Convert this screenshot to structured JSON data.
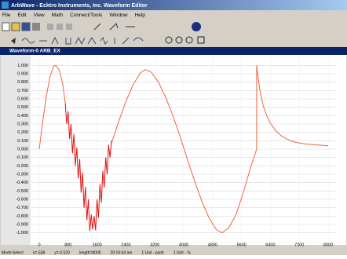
{
  "window_title": "ArbWave - Ecktro Instruments, Inc. Waveform Editor",
  "menu": [
    "File",
    "Edit",
    "View",
    "Math",
    "Connect/Tools",
    "Window",
    "Help"
  ],
  "document_tab": "Waveform-0 ARB_EX",
  "status_bar": [
    "Mode:Select",
    "x=-538",
    "y=-0.520",
    "length=8000",
    "20:19:44 am",
    "1 Unit - point",
    "1 Unit - %"
  ],
  "chart_data": {
    "type": "line",
    "grid": true,
    "xlim": [
      -217,
      8217
    ],
    "xticks": [
      0,
      800,
      1600,
      2400,
      3200,
      4000,
      4800,
      5600,
      6400,
      7200,
      8000
    ],
    "ylim": [
      -1.05,
      1.05
    ],
    "yticks": [
      {
        "value": 1,
        "label": "1.000"
      },
      {
        "value": 0.9,
        "label": "0.900"
      },
      {
        "value": 0.8,
        "label": "0.800"
      },
      {
        "value": 0.7,
        "label": "0.700"
      },
      {
        "value": 0.6,
        "label": "0.600"
      },
      {
        "value": 0.5,
        "label": "0.500"
      },
      {
        "value": 0.4,
        "label": "0.400"
      },
      {
        "value": 0.3,
        "label": "0.300"
      },
      {
        "value": 0.2,
        "label": "0.200"
      },
      {
        "value": 0.1,
        "label": "0.100"
      },
      {
        "value": 0,
        "label": "0.000"
      },
      {
        "value": -0.1,
        "label": "-0.100"
      },
      {
        "value": -0.2,
        "label": "-0.200"
      },
      {
        "value": -0.3,
        "label": "-0.300"
      },
      {
        "value": -0.4,
        "label": "-0.400"
      },
      {
        "value": -0.5,
        "label": "-0.500"
      },
      {
        "value": -0.6,
        "label": "-0.600"
      },
      {
        "value": -0.7,
        "label": "-0.700"
      },
      {
        "value": -0.8,
        "label": "-0.800"
      },
      {
        "value": -0.9,
        "label": "-0.900"
      },
      {
        "value": -1,
        "label": "-1.000"
      }
    ],
    "series": [
      {
        "color": "#f0643c",
        "x": [
          0,
          100,
          200,
          300,
          400,
          456,
          550,
          650,
          720,
          1360,
          2000,
          2200,
          2400,
          2600,
          2800,
          2930,
          3100,
          3300,
          3500,
          3700,
          3900,
          4100,
          4300,
          4500,
          4700,
          4900,
          5060,
          5250,
          5450,
          5650,
          5850,
          6020,
          6020,
          6060,
          6120,
          6200,
          6300,
          6400,
          6550,
          6700,
          6900,
          7100,
          7400,
          7700,
          8000
        ],
        "values": [
          0,
          0.34,
          0.64,
          0.87,
          0.99,
          1.0,
          0.95,
          0.78,
          0.55,
          null,
          0.07,
          0.33,
          0.57,
          0.77,
          0.91,
          0.95,
          0.92,
          0.8,
          0.62,
          0.4,
          0.15,
          -0.12,
          -0.38,
          -0.62,
          -0.82,
          -0.96,
          -1.0,
          -0.94,
          -0.78,
          -0.52,
          -0.22,
          0.0,
          1.0,
          0.85,
          0.68,
          0.52,
          0.4,
          0.31,
          0.22,
          0.16,
          0.11,
          0.08,
          0.06,
          0.05,
          0.04
        ]
      },
      {
        "color": "#e01010",
        "x": [
          720,
          760,
          800,
          840,
          880,
          920,
          960,
          1000,
          1040,
          1080,
          1120,
          1160,
          1200,
          1240,
          1280,
          1320,
          1360,
          1400,
          1440,
          1480,
          1520,
          1560,
          1600,
          1640,
          1680,
          1720,
          1760,
          1800,
          1840,
          1880,
          1920,
          1960,
          2000
        ],
        "values": [
          0.55,
          0.3,
          0.45,
          0.12,
          0.3,
          -0.05,
          0.18,
          -0.2,
          0.02,
          -0.35,
          -0.12,
          -0.52,
          -0.28,
          -0.7,
          -0.45,
          -0.85,
          -0.6,
          -0.98,
          -0.78,
          -0.96,
          -0.8,
          -0.97,
          -0.6,
          -0.82,
          -0.42,
          -0.64,
          -0.26,
          -0.46,
          -0.1,
          -0.3,
          0.05,
          -0.1,
          0.1
        ]
      }
    ]
  }
}
